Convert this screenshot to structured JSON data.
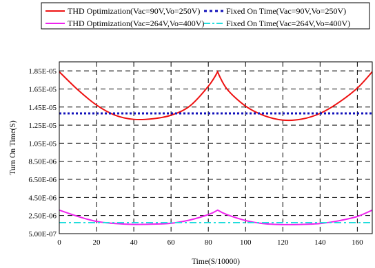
{
  "chart_data": {
    "type": "line",
    "title": "",
    "xlabel": "Time(S/10000)",
    "ylabel": "Turn On Time(S)",
    "xlim": [
      0,
      168
    ],
    "ylim": [
      5e-07,
      1.95e-05
    ],
    "x_ticks": [
      0,
      20,
      40,
      60,
      80,
      100,
      120,
      140,
      160
    ],
    "x_tick_labels": [
      "0",
      "20",
      "40",
      "60",
      "80",
      "100",
      "120",
      "140",
      "160"
    ],
    "y_ticks": [
      5e-07,
      2.5e-06,
      4.5e-06,
      6.5e-06,
      8.5e-06,
      1.05e-05,
      1.25e-05,
      1.45e-05,
      1.65e-05,
      1.85e-05
    ],
    "y_tick_labels": [
      "5.00E-07",
      "2.50E-06",
      "4.50E-06",
      "6.50E-06",
      "8.50E-06",
      "1.05E-05",
      "1.25E-05",
      "1.45E-05",
      "1.65E-05",
      "1.85E-05"
    ],
    "grid": true,
    "legend_position": "top",
    "series": [
      {
        "name": "THD Optimization(Vac=90V,Vo=250V)",
        "style": "solid",
        "color": "#ee1111",
        "x": [
          0,
          10,
          20,
          30,
          40,
          50,
          60,
          70,
          80,
          85,
          90,
          100,
          110,
          120,
          130,
          140,
          150,
          160,
          168
        ],
        "y": [
          1.84e-05,
          1.64e-05,
          1.472e-05,
          1.36e-05,
          1.314e-05,
          1.32e-05,
          1.36e-05,
          1.46e-05,
          1.68e-05,
          1.84e-05,
          1.65e-05,
          1.46e-05,
          1.355e-05,
          1.306e-05,
          1.316e-05,
          1.38e-05,
          1.5e-05,
          1.66e-05,
          1.84e-05
        ]
      },
      {
        "name": "Fixed On Time(Vac=90V,Vo=250V)",
        "style": "dotted",
        "color": "#1111bb",
        "x": [
          0,
          168
        ],
        "y": [
          1.38e-05,
          1.38e-05
        ]
      },
      {
        "name": "THD Optimization(Vac=264V,Vo=400V)",
        "style": "solid",
        "color": "#ee22ee",
        "x": [
          0,
          10,
          20,
          30,
          40,
          50,
          60,
          70,
          80,
          85,
          90,
          100,
          110,
          120,
          130,
          140,
          150,
          160,
          168
        ],
        "y": [
          3.1e-06,
          2.4e-06,
          1.85e-06,
          1.62e-06,
          1.52e-06,
          1.55e-06,
          1.65e-06,
          2e-06,
          2.6e-06,
          3.1e-06,
          2.6e-06,
          1.95e-06,
          1.6e-06,
          1.5e-06,
          1.52e-06,
          1.62e-06,
          1.92e-06,
          2.4e-06,
          3.1e-06
        ]
      },
      {
        "name": "Fixed On Time(Vac=264V,Vo=400V)",
        "style": "dashdot",
        "color": "#22dddd",
        "x": [
          0,
          168
        ],
        "y": [
          1.72e-06,
          1.72e-06
        ]
      }
    ]
  },
  "colors": {
    "grid": "#000000",
    "frame": "#000000"
  }
}
